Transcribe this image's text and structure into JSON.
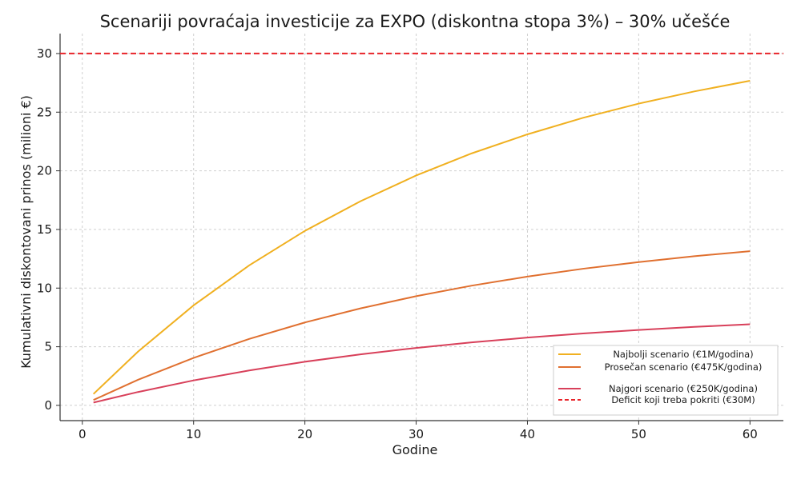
{
  "chart_data": {
    "type": "line",
    "title": "Scenariji povraćaja investicije za EXPO (diskontna stopa 3%) – 30% učešće",
    "xlabel": "Godine",
    "ylabel": "Kumulativni diskontovani prinos (milioni €)",
    "xlim": [
      -2,
      63
    ],
    "ylim": [
      -1.3,
      31.7
    ],
    "xticks": [
      0,
      10,
      20,
      30,
      40,
      50,
      60
    ],
    "yticks": [
      0,
      5,
      10,
      15,
      20,
      25,
      30
    ],
    "grid": true,
    "legend_position": "bottom-right",
    "x": [
      1,
      5,
      10,
      15,
      20,
      25,
      30,
      35,
      40,
      45,
      50,
      55,
      60
    ],
    "series": [
      {
        "name": "Najbolji scenario (€1M/godina)",
        "color": "#f0b020",
        "style": "solid",
        "values": [
          0.97,
          4.58,
          8.53,
          11.94,
          14.88,
          17.41,
          19.6,
          21.49,
          23.11,
          24.52,
          25.73,
          26.77,
          27.68
        ]
      },
      {
        "name": "Prosečan scenario (€475K/godina)",
        "color": "#e07030",
        "style": "solid",
        "values": [
          0.46,
          2.18,
          4.05,
          5.67,
          7.07,
          8.27,
          9.31,
          10.21,
          10.98,
          11.65,
          12.22,
          12.72,
          13.15
        ]
      },
      {
        "name": "Najgori scenario (€250K/godina)",
        "color": "#d8405a",
        "style": "solid",
        "values": [
          0.24,
          1.14,
          2.13,
          2.98,
          3.72,
          4.35,
          4.9,
          5.37,
          5.78,
          6.13,
          6.43,
          6.69,
          6.92
        ]
      },
      {
        "name": "Deficit koji treba pokriti (€30M)",
        "color": "#e8242a",
        "style": "dashed",
        "type": "hline",
        "y": 30
      }
    ]
  }
}
